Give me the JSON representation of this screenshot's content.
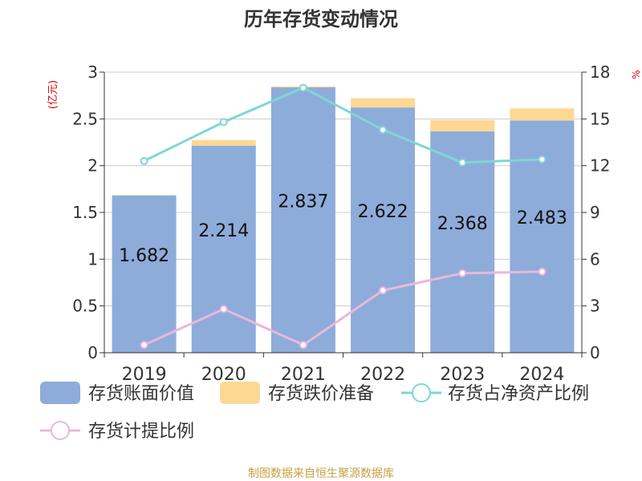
{
  "chart_data": {
    "type": "bar",
    "title": "历年存货变动情况",
    "ylabel": "(亿元)",
    "y2label": "%",
    "categories": [
      "2019",
      "2020",
      "2021",
      "2022",
      "2023",
      "2024"
    ],
    "ylim": [
      0,
      3
    ],
    "y2lim": [
      0,
      18
    ],
    "yticks": [
      "0",
      "0.5",
      "1",
      "1.5",
      "2",
      "2.5",
      "3"
    ],
    "y2ticks": [
      "0",
      "3",
      "6",
      "9",
      "12",
      "15",
      "18"
    ],
    "grid": true,
    "legend_position": "bottom",
    "bar_series": [
      {
        "name": "存货账面价值",
        "color": "#8eacd9",
        "values": [
          1.682,
          2.214,
          2.837,
          2.622,
          2.368,
          2.483
        ],
        "value_labels": [
          "1.682",
          "2.214",
          "2.837",
          "2.622",
          "2.368",
          "2.483"
        ]
      },
      {
        "name": "存货跌价准备",
        "color": "#fdd894",
        "values": [
          0.005,
          0.06,
          0.01,
          0.1,
          0.12,
          0.13
        ]
      }
    ],
    "line_series": [
      {
        "name": "存货占净资产比例",
        "color": "#7fd6d6",
        "axis": "right",
        "values": [
          12.3,
          14.8,
          17.0,
          14.3,
          12.2,
          12.4
        ]
      },
      {
        "name": "存货计提比例",
        "color": "#e8b8dc",
        "axis": "right",
        "values": [
          0.5,
          2.8,
          0.5,
          4.0,
          5.1,
          5.2
        ]
      }
    ]
  },
  "footer": {
    "source": "制图数据来自恒生聚源数据库"
  }
}
